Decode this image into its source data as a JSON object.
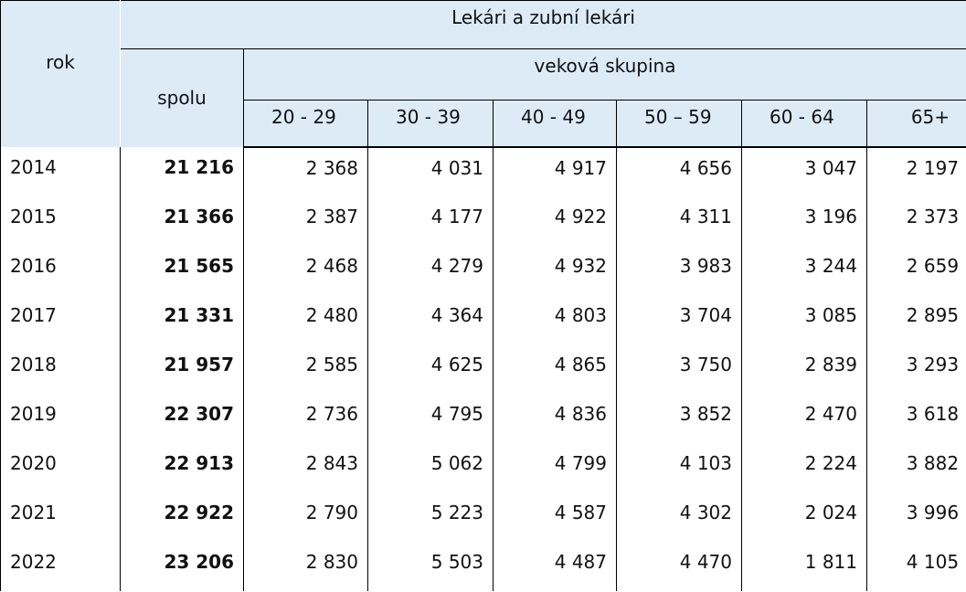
{
  "header": {
    "rok_label": "rok",
    "main_title": "Lekári a zubní lekári",
    "spolu_label": "spolu",
    "age_group_label": "veková skupina",
    "age_groups": [
      "20 - 29",
      "30 - 39",
      "40 - 49",
      "50 – 59",
      "60 - 64",
      "65+"
    ]
  },
  "rows": [
    {
      "year": "2014",
      "total": "21 216",
      "values": [
        "2 368",
        "4 031",
        "4 917",
        "4 656",
        "3 047",
        "2 197"
      ]
    },
    {
      "year": "2015",
      "total": "21 366",
      "values": [
        "2 387",
        "4 177",
        "4 922",
        "4 311",
        "3 196",
        "2 373"
      ]
    },
    {
      "year": "2016",
      "total": "21 565",
      "values": [
        "2 468",
        "4 279",
        "4 932",
        "3 983",
        "3 244",
        "2 659"
      ]
    },
    {
      "year": "2017",
      "total": "21 331",
      "values": [
        "2 480",
        "4 364",
        "4 803",
        "3 704",
        "3 085",
        "2 895"
      ]
    },
    {
      "year": "2018",
      "total": "21 957",
      "values": [
        "2 585",
        "4 625",
        "4 865",
        "3 750",
        "2 839",
        "3 293"
      ]
    },
    {
      "year": "2019",
      "total": "22 307",
      "values": [
        "2 736",
        "4 795",
        "4 836",
        "3 852",
        "2 470",
        "3 618"
      ]
    },
    {
      "year": "2020",
      "total": "22 913",
      "values": [
        "2 843",
        "5 062",
        "4 799",
        "4 103",
        "2 224",
        "3 882"
      ]
    },
    {
      "year": "2021",
      "total": "22 922",
      "values": [
        "2 790",
        "5 223",
        "4 587",
        "4 302",
        "2 024",
        "3 996"
      ]
    },
    {
      "year": "2022",
      "total": "23 206",
      "values": [
        "2 830",
        "5 503",
        "4 487",
        "4 470",
        "1 811",
        "4 105"
      ]
    }
  ],
  "colors": {
    "header_background": "#ddebf7",
    "border": "#000000"
  }
}
